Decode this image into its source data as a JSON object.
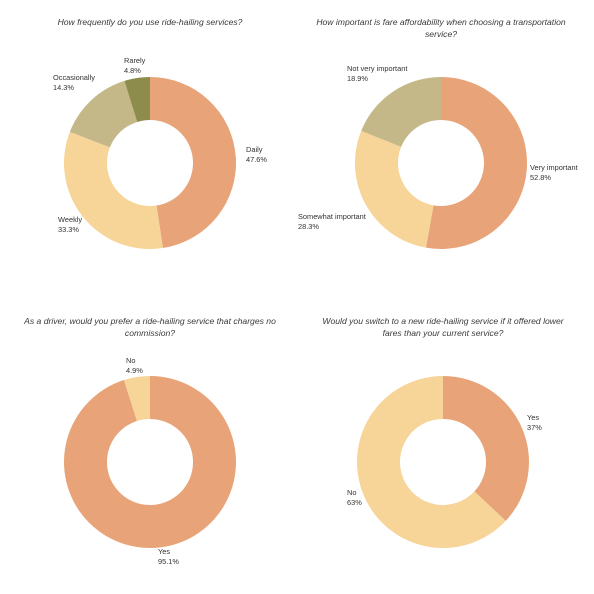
{
  "colors": {
    "orange": "#E8A478",
    "light": "#F7D498",
    "khaki": "#C4B788",
    "olive": "#8E8C4C"
  },
  "chart_data": [
    {
      "type": "pie",
      "donut": true,
      "title": [
        "How frequently do you use ride-hailing services?"
      ],
      "slices": [
        {
          "label": "Daily",
          "pct": "47.6%",
          "value": 47.6,
          "color": "#E8A478"
        },
        {
          "label": "Weekly",
          "pct": "33.3%",
          "value": 33.3,
          "color": "#F7D498"
        },
        {
          "label": "Occasionally",
          "pct": "14.3%",
          "value": 14.3,
          "color": "#C4B788"
        },
        {
          "label": "Rarely",
          "pct": "4.8%",
          "value": 4.8,
          "color": "#8E8C4C"
        }
      ]
    },
    {
      "type": "pie",
      "donut": true,
      "title": [
        "How important is fare affordability when choosing a transportation",
        "service?"
      ],
      "slices": [
        {
          "label": "Very important",
          "pct": "52.8%",
          "value": 52.8,
          "color": "#E8A478"
        },
        {
          "label": "Somewhat important",
          "pct": "28.3%",
          "value": 28.3,
          "color": "#F7D498"
        },
        {
          "label": "Not very important",
          "pct": "18.9%",
          "value": 18.9,
          "color": "#C4B788"
        }
      ]
    },
    {
      "type": "pie",
      "donut": true,
      "title": [
        "As a driver, would you prefer a ride-hailing service that charges no",
        "commission?"
      ],
      "slices": [
        {
          "label": "Yes",
          "pct": "95.1%",
          "value": 95.1,
          "color": "#E8A478"
        },
        {
          "label": "No",
          "pct": "4.9%",
          "value": 4.9,
          "color": "#F7D498"
        }
      ]
    },
    {
      "type": "pie",
      "donut": true,
      "title": [
        "Would you switch to a new ride-hailing service if it offered lower",
        "fares than your current service?"
      ],
      "slices": [
        {
          "label": "Yes",
          "pct": "37%",
          "value": 37,
          "color": "#E8A478"
        },
        {
          "label": "No",
          "pct": "63%",
          "value": 63,
          "color": "#F7D498"
        }
      ]
    }
  ]
}
